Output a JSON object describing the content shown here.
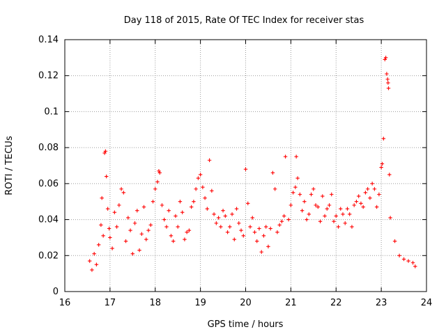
{
  "chart_data": {
    "type": "scatter",
    "title": "Day 118 of 2015, Rate Of TEC Index for receiver stas",
    "xlabel": "GPS time / hours",
    "ylabel": "ROTI / TECUs",
    "xlim": [
      16,
      24
    ],
    "ylim": [
      0,
      0.14
    ],
    "x_ticks": [
      "16",
      "17",
      "18",
      "19",
      "20",
      "21",
      "22",
      "23",
      "24"
    ],
    "y_ticks": [
      "0",
      "0.02",
      "0.04",
      "0.06",
      "0.08",
      "0.1",
      "0.12",
      "0.14"
    ],
    "grid": true,
    "marker": "+",
    "color": "#ff0000",
    "series": [
      {
        "name": "stas",
        "points": [
          [
            16.55,
            0.017
          ],
          [
            16.6,
            0.012
          ],
          [
            16.65,
            0.021
          ],
          [
            16.7,
            0.015
          ],
          [
            16.75,
            0.026
          ],
          [
            16.8,
            0.037
          ],
          [
            16.82,
            0.052
          ],
          [
            16.85,
            0.031
          ],
          [
            16.88,
            0.077
          ],
          [
            16.9,
            0.078
          ],
          [
            16.92,
            0.064
          ],
          [
            16.95,
            0.046
          ],
          [
            16.98,
            0.035
          ],
          [
            17.0,
            0.03
          ],
          [
            17.05,
            0.024
          ],
          [
            17.1,
            0.044
          ],
          [
            17.15,
            0.036
          ],
          [
            17.2,
            0.048
          ],
          [
            17.25,
            0.057
          ],
          [
            17.3,
            0.055
          ],
          [
            17.35,
            0.028
          ],
          [
            17.4,
            0.041
          ],
          [
            17.45,
            0.034
          ],
          [
            17.5,
            0.021
          ],
          [
            17.55,
            0.038
          ],
          [
            17.6,
            0.045
          ],
          [
            17.65,
            0.023
          ],
          [
            17.7,
            0.032
          ],
          [
            17.75,
            0.047
          ],
          [
            17.8,
            0.029
          ],
          [
            17.85,
            0.034
          ],
          [
            17.9,
            0.037
          ],
          [
            17.95,
            0.05
          ],
          [
            18.0,
            0.057
          ],
          [
            18.05,
            0.061
          ],
          [
            18.08,
            0.067
          ],
          [
            18.1,
            0.066
          ],
          [
            18.15,
            0.048
          ],
          [
            18.2,
            0.04
          ],
          [
            18.25,
            0.036
          ],
          [
            18.3,
            0.045
          ],
          [
            18.35,
            0.031
          ],
          [
            18.4,
            0.028
          ],
          [
            18.45,
            0.042
          ],
          [
            18.5,
            0.036
          ],
          [
            18.55,
            0.05
          ],
          [
            18.6,
            0.044
          ],
          [
            18.65,
            0.029
          ],
          [
            18.7,
            0.033
          ],
          [
            18.75,
            0.034
          ],
          [
            18.8,
            0.047
          ],
          [
            18.85,
            0.05
          ],
          [
            18.9,
            0.057
          ],
          [
            18.95,
            0.063
          ],
          [
            19.0,
            0.065
          ],
          [
            19.05,
            0.058
          ],
          [
            19.1,
            0.052
          ],
          [
            19.15,
            0.046
          ],
          [
            19.2,
            0.073
          ],
          [
            19.25,
            0.056
          ],
          [
            19.3,
            0.043
          ],
          [
            19.35,
            0.038
          ],
          [
            19.4,
            0.041
          ],
          [
            19.45,
            0.036
          ],
          [
            19.5,
            0.045
          ],
          [
            19.55,
            0.042
          ],
          [
            19.6,
            0.033
          ],
          [
            19.65,
            0.036
          ],
          [
            19.7,
            0.043
          ],
          [
            19.75,
            0.029
          ],
          [
            19.8,
            0.046
          ],
          [
            19.85,
            0.038
          ],
          [
            19.9,
            0.034
          ],
          [
            19.95,
            0.031
          ],
          [
            20.0,
            0.068
          ],
          [
            20.05,
            0.049
          ],
          [
            20.1,
            0.036
          ],
          [
            20.15,
            0.041
          ],
          [
            20.2,
            0.033
          ],
          [
            20.25,
            0.028
          ],
          [
            20.3,
            0.035
          ],
          [
            20.35,
            0.022
          ],
          [
            20.4,
            0.031
          ],
          [
            20.45,
            0.036
          ],
          [
            20.5,
            0.025
          ],
          [
            20.55,
            0.035
          ],
          [
            20.6,
            0.066
          ],
          [
            20.65,
            0.057
          ],
          [
            20.7,
            0.033
          ],
          [
            20.75,
            0.037
          ],
          [
            20.8,
            0.039
          ],
          [
            20.85,
            0.042
          ],
          [
            20.88,
            0.075
          ],
          [
            20.95,
            0.04
          ],
          [
            21.0,
            0.048
          ],
          [
            21.05,
            0.055
          ],
          [
            21.1,
            0.058
          ],
          [
            21.12,
            0.075
          ],
          [
            21.15,
            0.063
          ],
          [
            21.2,
            0.054
          ],
          [
            21.25,
            0.045
          ],
          [
            21.3,
            0.05
          ],
          [
            21.35,
            0.04
          ],
          [
            21.4,
            0.043
          ],
          [
            21.45,
            0.054
          ],
          [
            21.5,
            0.057
          ],
          [
            21.55,
            0.048
          ],
          [
            21.6,
            0.047
          ],
          [
            21.65,
            0.039
          ],
          [
            21.7,
            0.053
          ],
          [
            21.75,
            0.042
          ],
          [
            21.8,
            0.046
          ],
          [
            21.85,
            0.048
          ],
          [
            21.9,
            0.054
          ],
          [
            21.95,
            0.039
          ],
          [
            22.0,
            0.042
          ],
          [
            22.05,
            0.036
          ],
          [
            22.1,
            0.046
          ],
          [
            22.15,
            0.043
          ],
          [
            22.2,
            0.038
          ],
          [
            22.25,
            0.046
          ],
          [
            22.3,
            0.043
          ],
          [
            22.35,
            0.036
          ],
          [
            22.4,
            0.048
          ],
          [
            22.45,
            0.05
          ],
          [
            22.5,
            0.053
          ],
          [
            22.55,
            0.049
          ],
          [
            22.6,
            0.047
          ],
          [
            22.65,
            0.055
          ],
          [
            22.7,
            0.057
          ],
          [
            22.75,
            0.052
          ],
          [
            22.8,
            0.06
          ],
          [
            22.85,
            0.057
          ],
          [
            22.9,
            0.047
          ],
          [
            22.95,
            0.054
          ],
          [
            23.0,
            0.069
          ],
          [
            23.02,
            0.071
          ],
          [
            23.05,
            0.085
          ],
          [
            23.08,
            0.129
          ],
          [
            23.1,
            0.13
          ],
          [
            23.12,
            0.121
          ],
          [
            23.14,
            0.118
          ],
          [
            23.15,
            0.116
          ],
          [
            23.16,
            0.113
          ],
          [
            23.18,
            0.065
          ],
          [
            23.2,
            0.041
          ],
          [
            23.3,
            0.028
          ],
          [
            23.4,
            0.02
          ],
          [
            23.5,
            0.018
          ],
          [
            23.6,
            0.017
          ],
          [
            23.7,
            0.016
          ],
          [
            23.75,
            0.014
          ]
        ]
      }
    ]
  }
}
